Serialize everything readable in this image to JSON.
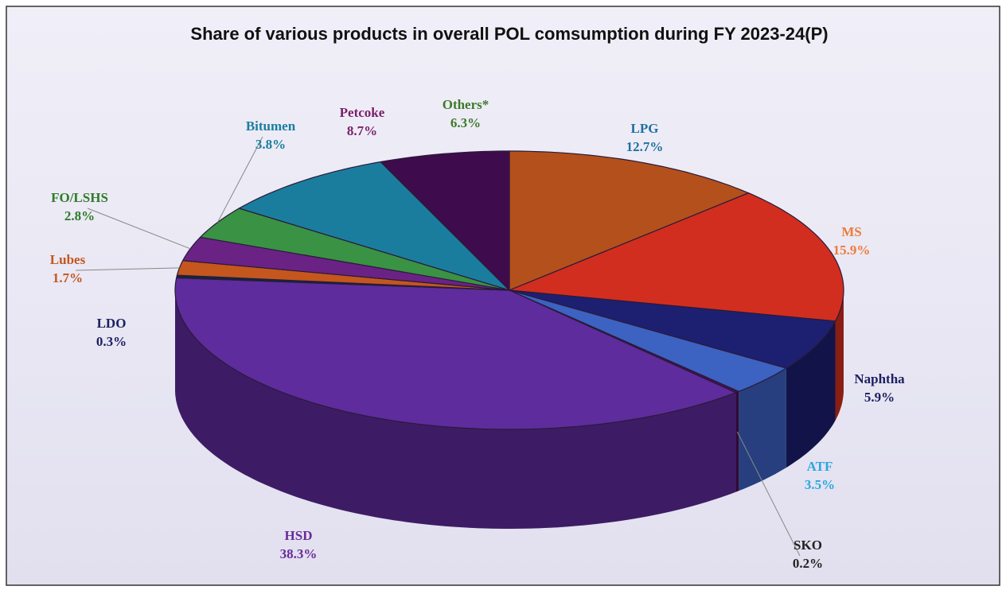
{
  "chart_data": {
    "type": "pie3d",
    "title": "Share of various products in overall POL comsumption during FY 2023-24(P)",
    "categories": [
      "LPG",
      "MS",
      "Naphtha",
      "ATF",
      "SKO",
      "HSD",
      "LDO",
      "Lubes",
      "FO/LSHS",
      "Bitumen",
      "Petcoke",
      "Others*"
    ],
    "values": [
      12.7,
      15.9,
      5.9,
      3.5,
      0.2,
      38.3,
      0.3,
      1.7,
      2.8,
      3.8,
      8.7,
      6.3
    ],
    "value_labels": [
      "12.7%",
      "15.9%",
      "5.9%",
      "3.5%",
      "0.2%",
      "38.3%",
      "0.3%",
      "1.7%",
      "2.8%",
      "3.8%",
      "8.7%",
      "6.3%"
    ],
    "colors": [
      "#b4501c",
      "#d12e1f",
      "#1d2070",
      "#3c62c2",
      "#4a0f55",
      "#5e2c9c",
      "#0b2a3e",
      "#c4561e",
      "#6a2385",
      "#3a9244",
      "#1b7d9e",
      "#3e0b4c"
    ],
    "label_colors": [
      "#1f6fa0",
      "#f07a3a",
      "#1d2060",
      "#2aa7e0",
      "#222222",
      "#6a2a9a",
      "#1d2060",
      "#c4561e",
      "#2f7a2a",
      "#1b7d9e",
      "#7a1f6a",
      "#3f7a2a"
    ]
  }
}
